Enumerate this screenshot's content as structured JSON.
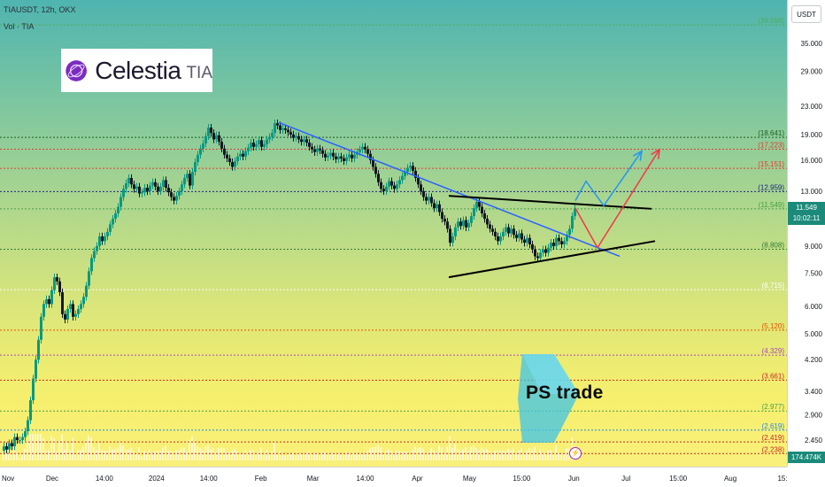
{
  "legend": {
    "symbol": "TIAUSDT, 12h, OKX",
    "volume": "Vol · TIA"
  },
  "price_axis": {
    "unit": "USDT"
  },
  "logo": {
    "name": "Celestia",
    "ticker": "TIA"
  },
  "watermark": "PS trade",
  "current_price": {
    "price": "11.549",
    "countdown": "10:02:11",
    "volume": "174.474K"
  },
  "colors": {
    "trend_blue": "#2962ff",
    "projection_red": "#f23645",
    "projection_blue": "#2196f3",
    "triangle": "#000000",
    "candle_up": "#089981",
    "candle_down": "#131722"
  },
  "chart_data": {
    "type": "candlestick",
    "y_scale": "log",
    "ylim": [
      2.1,
      46
    ],
    "axis_ticks": [
      "35.000",
      "29.000",
      "23.000",
      "19.000",
      "16.000",
      "13.000",
      "9.000",
      "7.500",
      "6.000",
      "5.000",
      "4.200",
      "3.400",
      "2.900",
      "2.450"
    ],
    "time_ticks": [
      "Nov",
      "Dec",
      "14:00",
      "2024",
      "14:00",
      "Feb",
      "Mar",
      "14:00",
      "Apr",
      "May",
      "15:00",
      "Jun",
      "Jul",
      "15:00",
      "Aug",
      "15:"
    ],
    "levels": [
      {
        "label": "(39.598)",
        "value": 39.598,
        "color": "#4caf50"
      },
      {
        "label": "(18.641)",
        "value": 18.641,
        "color": "#1b5e20"
      },
      {
        "label": "(17.223)",
        "value": 17.223,
        "color": "#e53935"
      },
      {
        "label": "(15.151)",
        "value": 15.151,
        "color": "#e53935"
      },
      {
        "label": "(12.959)",
        "value": 12.959,
        "color": "#1a237e"
      },
      {
        "label": "(11.549)",
        "value": 11.549,
        "color": "#43a047"
      },
      {
        "label": "(8.808)",
        "value": 8.808,
        "color": "#2e7d32"
      },
      {
        "label": "(6.715)",
        "value": 6.715,
        "color": "#ffffff"
      },
      {
        "label": "(5.120)",
        "value": 5.12,
        "color": "#e65100"
      },
      {
        "label": "(4.329)",
        "value": 4.329,
        "color": "#ab47bc"
      },
      {
        "label": "(3.661)",
        "value": 3.661,
        "color": "#c62828"
      },
      {
        "label": "(2.977)",
        "value": 2.977,
        "color": "#43a047"
      },
      {
        "label": "(2.619)",
        "value": 2.619,
        "color": "#1e88e5"
      },
      {
        "label": "(2.419)",
        "value": 2.419,
        "color": "#c62828"
      },
      {
        "label": "(2.238)",
        "value": 2.238,
        "color": "#c62828"
      }
    ],
    "series": [
      {
        "x": 0,
        "value": 2.28
      },
      {
        "x": 3,
        "value": 2.35
      },
      {
        "x": 6,
        "value": 2.3
      },
      {
        "x": 9,
        "value": 2.4
      },
      {
        "x": 12,
        "value": 2.35
      },
      {
        "x": 15,
        "value": 2.5
      },
      {
        "x": 18,
        "value": 2.45
      },
      {
        "x": 21,
        "value": 2.45
      },
      {
        "x": 24,
        "value": 2.5
      },
      {
        "x": 27,
        "value": 2.6
      },
      {
        "x": 30,
        "value": 2.8
      },
      {
        "x": 33,
        "value": 3.2
      },
      {
        "x": 36,
        "value": 3.7
      },
      {
        "x": 39,
        "value": 4.2
      },
      {
        "x": 42,
        "value": 4.8
      },
      {
        "x": 45,
        "value": 5.6
      },
      {
        "x": 48,
        "value": 6.1
      },
      {
        "x": 51,
        "value": 6.3
      },
      {
        "x": 54,
        "value": 6.1
      },
      {
        "x": 57,
        "value": 6.7
      },
      {
        "x": 60,
        "value": 7.3
      },
      {
        "x": 63,
        "value": 7.1
      },
      {
        "x": 66,
        "value": 6.6
      },
      {
        "x": 69,
        "value": 5.7
      },
      {
        "x": 72,
        "value": 5.5
      },
      {
        "x": 75,
        "value": 5.9
      },
      {
        "x": 78,
        "value": 6.1
      },
      {
        "x": 81,
        "value": 5.6
      },
      {
        "x": 84,
        "value": 5.7
      },
      {
        "x": 87,
        "value": 5.9
      },
      {
        "x": 90,
        "value": 6.1
      },
      {
        "x": 93,
        "value": 6.4
      },
      {
        "x": 96,
        "value": 6.9
      },
      {
        "x": 99,
        "value": 7.6
      },
      {
        "x": 102,
        "value": 8.3
      },
      {
        "x": 105,
        "value": 8.7
      },
      {
        "x": 108,
        "value": 9.0
      },
      {
        "x": 111,
        "value": 9.6
      },
      {
        "x": 114,
        "value": 9.3
      },
      {
        "x": 117,
        "value": 9.6
      },
      {
        "x": 120,
        "value": 9.9
      },
      {
        "x": 123,
        "value": 10.4
      },
      {
        "x": 126,
        "value": 10.8
      },
      {
        "x": 129,
        "value": 11.2
      },
      {
        "x": 132,
        "value": 11.7
      },
      {
        "x": 135,
        "value": 12.5
      },
      {
        "x": 138,
        "value": 13.2
      },
      {
        "x": 141,
        "value": 13.7
      },
      {
        "x": 144,
        "value": 14.2
      },
      {
        "x": 147,
        "value": 13.6
      },
      {
        "x": 150,
        "value": 13.2
      },
      {
        "x": 153,
        "value": 13.4
      },
      {
        "x": 156,
        "value": 12.8
      },
      {
        "x": 159,
        "value": 12.9
      },
      {
        "x": 162,
        "value": 13.3
      },
      {
        "x": 165,
        "value": 13.0
      },
      {
        "x": 168,
        "value": 13.5
      },
      {
        "x": 171,
        "value": 13.8
      },
      {
        "x": 174,
        "value": 13.4
      },
      {
        "x": 177,
        "value": 13.0
      },
      {
        "x": 180,
        "value": 13.4
      },
      {
        "x": 183,
        "value": 14.0
      },
      {
        "x": 186,
        "value": 13.3
      },
      {
        "x": 189,
        "value": 12.9
      },
      {
        "x": 192,
        "value": 12.5
      },
      {
        "x": 195,
        "value": 12.2
      },
      {
        "x": 198,
        "value": 12.6
      },
      {
        "x": 201,
        "value": 13.0
      },
      {
        "x": 204,
        "value": 13.6
      },
      {
        "x": 207,
        "value": 14.2
      },
      {
        "x": 210,
        "value": 14.6
      },
      {
        "x": 213,
        "value": 13.5
      },
      {
        "x": 216,
        "value": 14.8
      },
      {
        "x": 219,
        "value": 15.8
      },
      {
        "x": 222,
        "value": 16.6
      },
      {
        "x": 225,
        "value": 17.3
      },
      {
        "x": 228,
        "value": 17.9
      },
      {
        "x": 231,
        "value": 18.8
      },
      {
        "x": 234,
        "value": 19.9
      },
      {
        "x": 237,
        "value": 19.2
      },
      {
        "x": 240,
        "value": 18.4
      },
      {
        "x": 243,
        "value": 18.9
      },
      {
        "x": 246,
        "value": 18.1
      },
      {
        "x": 249,
        "value": 17.3
      },
      {
        "x": 252,
        "value": 16.6
      },
      {
        "x": 255,
        "value": 16.2
      },
      {
        "x": 258,
        "value": 15.8
      },
      {
        "x": 261,
        "value": 15.3
      },
      {
        "x": 264,
        "value": 15.9
      },
      {
        "x": 267,
        "value": 16.4
      },
      {
        "x": 270,
        "value": 16.7
      },
      {
        "x": 273,
        "value": 16.4
      },
      {
        "x": 276,
        "value": 17.0
      },
      {
        "x": 279,
        "value": 17.4
      },
      {
        "x": 282,
        "value": 18.0
      },
      {
        "x": 285,
        "value": 17.5
      },
      {
        "x": 288,
        "value": 17.8
      },
      {
        "x": 291,
        "value": 18.3
      },
      {
        "x": 294,
        "value": 17.5
      },
      {
        "x": 297,
        "value": 17.8
      },
      {
        "x": 300,
        "value": 18.4
      },
      {
        "x": 303,
        "value": 18.7
      },
      {
        "x": 306,
        "value": 19.2
      },
      {
        "x": 309,
        "value": 20.5
      },
      {
        "x": 312,
        "value": 20.2
      },
      {
        "x": 315,
        "value": 19.6
      },
      {
        "x": 318,
        "value": 19.8
      },
      {
        "x": 321,
        "value": 19.6
      },
      {
        "x": 324,
        "value": 19.3
      },
      {
        "x": 327,
        "value": 19.0
      },
      {
        "x": 330,
        "value": 18.6
      },
      {
        "x": 333,
        "value": 18.8
      },
      {
        "x": 336,
        "value": 18.4
      },
      {
        "x": 339,
        "value": 18.1
      },
      {
        "x": 342,
        "value": 18.4
      },
      {
        "x": 345,
        "value": 18.0
      },
      {
        "x": 348,
        "value": 17.5
      },
      {
        "x": 351,
        "value": 17.2
      },
      {
        "x": 354,
        "value": 16.9
      },
      {
        "x": 357,
        "value": 17.3
      },
      {
        "x": 360,
        "value": 17.1
      },
      {
        "x": 363,
        "value": 16.7
      },
      {
        "x": 366,
        "value": 16.3
      },
      {
        "x": 369,
        "value": 16.5
      },
      {
        "x": 372,
        "value": 16.8
      },
      {
        "x": 375,
        "value": 16.4
      },
      {
        "x": 378,
        "value": 16.1
      },
      {
        "x": 381,
        "value": 16.4
      },
      {
        "x": 384,
        "value": 16.2
      },
      {
        "x": 387,
        "value": 15.9
      },
      {
        "x": 390,
        "value": 16.3
      },
      {
        "x": 393,
        "value": 16.6
      },
      {
        "x": 396,
        "value": 16.2
      },
      {
        "x": 399,
        "value": 16.6
      },
      {
        "x": 402,
        "value": 16.9
      },
      {
        "x": 405,
        "value": 17.2
      },
      {
        "x": 408,
        "value": 17.5
      },
      {
        "x": 411,
        "value": 17.2
      },
      {
        "x": 414,
        "value": 16.7
      },
      {
        "x": 417,
        "value": 16.0
      },
      {
        "x": 420,
        "value": 15.3
      },
      {
        "x": 423,
        "value": 14.6
      },
      {
        "x": 426,
        "value": 13.8
      },
      {
        "x": 429,
        "value": 13.2
      },
      {
        "x": 432,
        "value": 13.0
      },
      {
        "x": 435,
        "value": 13.4
      },
      {
        "x": 438,
        "value": 13.9
      },
      {
        "x": 441,
        "value": 13.5
      },
      {
        "x": 444,
        "value": 13.2
      },
      {
        "x": 447,
        "value": 13.6
      },
      {
        "x": 450,
        "value": 14.0
      },
      {
        "x": 453,
        "value": 14.4
      },
      {
        "x": 456,
        "value": 14.8
      },
      {
        "x": 459,
        "value": 15.2
      },
      {
        "x": 462,
        "value": 15.4
      },
      {
        "x": 465,
        "value": 14.9
      },
      {
        "x": 468,
        "value": 14.2
      },
      {
        "x": 471,
        "value": 13.6
      },
      {
        "x": 474,
        "value": 13.0
      },
      {
        "x": 477,
        "value": 12.5
      },
      {
        "x": 480,
        "value": 12.2
      },
      {
        "x": 483,
        "value": 12.5
      },
      {
        "x": 486,
        "value": 12.0
      },
      {
        "x": 489,
        "value": 11.6
      },
      {
        "x": 492,
        "value": 11.9
      },
      {
        "x": 495,
        "value": 11.3
      },
      {
        "x": 498,
        "value": 10.8
      },
      {
        "x": 501,
        "value": 10.6
      },
      {
        "x": 504,
        "value": 10.1
      },
      {
        "x": 507,
        "value": 9.2
      },
      {
        "x": 510,
        "value": 9.6
      },
      {
        "x": 513,
        "value": 10.2
      },
      {
        "x": 516,
        "value": 10.6
      },
      {
        "x": 519,
        "value": 10.3
      },
      {
        "x": 522,
        "value": 10.7
      },
      {
        "x": 525,
        "value": 10.2
      },
      {
        "x": 528,
        "value": 10.5
      },
      {
        "x": 531,
        "value": 11.0
      },
      {
        "x": 534,
        "value": 11.6
      },
      {
        "x": 537,
        "value": 12.1
      },
      {
        "x": 540,
        "value": 11.7
      },
      {
        "x": 543,
        "value": 11.2
      },
      {
        "x": 546,
        "value": 10.8
      },
      {
        "x": 549,
        "value": 10.4
      },
      {
        "x": 552,
        "value": 10.1
      },
      {
        "x": 555,
        "value": 9.9
      },
      {
        "x": 558,
        "value": 9.6
      },
      {
        "x": 561,
        "value": 9.3
      },
      {
        "x": 564,
        "value": 9.6
      },
      {
        "x": 567,
        "value": 9.9
      },
      {
        "x": 570,
        "value": 10.2
      },
      {
        "x": 573,
        "value": 9.8
      },
      {
        "x": 576,
        "value": 10.1
      },
      {
        "x": 579,
        "value": 9.7
      },
      {
        "x": 582,
        "value": 9.5
      },
      {
        "x": 585,
        "value": 9.8
      },
      {
        "x": 588,
        "value": 9.4
      },
      {
        "x": 591,
        "value": 9.2
      },
      {
        "x": 594,
        "value": 9.5
      },
      {
        "x": 597,
        "value": 9.1
      },
      {
        "x": 600,
        "value": 8.8
      },
      {
        "x": 603,
        "value": 8.4
      },
      {
        "x": 606,
        "value": 8.3
      },
      {
        "x": 609,
        "value": 8.6
      },
      {
        "x": 612,
        "value": 8.8
      },
      {
        "x": 615,
        "value": 8.6
      },
      {
        "x": 618,
        "value": 8.9
      },
      {
        "x": 621,
        "value": 9.2
      },
      {
        "x": 624,
        "value": 9.0
      },
      {
        "x": 627,
        "value": 9.5
      },
      {
        "x": 630,
        "value": 9.3
      },
      {
        "x": 633,
        "value": 9.1
      },
      {
        "x": 636,
        "value": 9.3
      },
      {
        "x": 639,
        "value": 9.7
      },
      {
        "x": 642,
        "value": 10.1
      },
      {
        "x": 645,
        "value": 11.0
      },
      {
        "x": 648,
        "value": 11.549
      }
    ],
    "trendlines": [
      {
        "name": "descending-trendline",
        "color": "#2962ff",
        "points": [
          [
            315,
            20.6
          ],
          [
            700,
            8.4
          ]
        ]
      },
      {
        "name": "triangle-upper",
        "color": "#000000",
        "points": [
          [
            507,
            12.6
          ],
          [
            736,
            11.55
          ]
        ]
      },
      {
        "name": "triangle-lower",
        "color": "#000000",
        "points": [
          [
            507,
            7.3
          ],
          [
            740,
            9.3
          ]
        ]
      }
    ],
    "projections": [
      {
        "name": "red-projection",
        "color": "#f23645",
        "points": [
          [
            650,
            11.6
          ],
          [
            675,
            8.9
          ],
          [
            745,
            17.2
          ]
        ]
      },
      {
        "name": "blue-projection",
        "color": "#2196f3",
        "points": [
          [
            650,
            12.2
          ],
          [
            662,
            13.9
          ],
          [
            682,
            11.8
          ],
          [
            725,
            17.0
          ]
        ]
      }
    ]
  }
}
